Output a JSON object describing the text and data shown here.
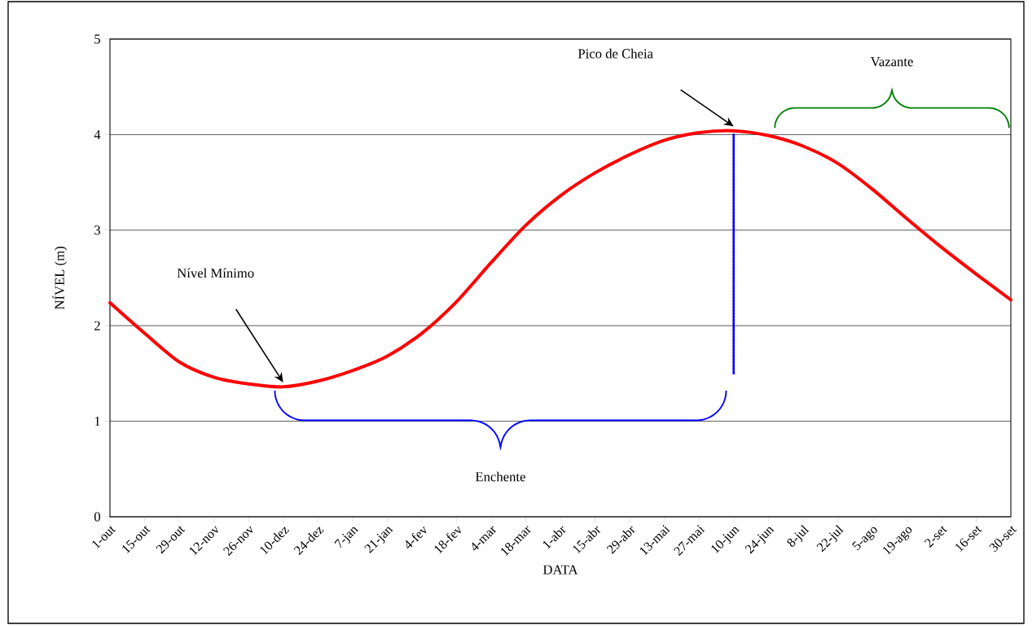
{
  "chart_data": {
    "type": "line",
    "xlabel": "DATA",
    "ylabel": "NÍVEL (m)",
    "categories": [
      "1-out",
      "15-out",
      "29-out",
      "12-nov",
      "26-nov",
      "10-dez",
      "24-dez",
      "7-jan",
      "21-jan",
      "4-fev",
      "18-fev",
      "4-mar",
      "18-mar",
      "1-abr",
      "15-abr",
      "29-abr",
      "13-mai",
      "27-mai",
      "10-jun",
      "24-jun",
      "8-jul",
      "22-jul",
      "5-ago",
      "19-ago",
      "2-set",
      "16-set",
      "30-set"
    ],
    "series": [
      {
        "color": "#ff0000",
        "line_style": "solid",
        "values": [
          2.24,
          1.92,
          1.62,
          1.46,
          1.39,
          1.36,
          1.42,
          1.53,
          1.68,
          1.92,
          2.25,
          2.66,
          3.05,
          3.36,
          3.6,
          3.79,
          3.94,
          4.02,
          4.04,
          3.99,
          3.88,
          3.7,
          3.43,
          3.12,
          2.82,
          2.54,
          2.27
        ]
      },
      {
        "color": "#0000ff",
        "line_style": "dotted",
        "x": [
          "10-jun",
          "10-jun"
        ],
        "values": [
          1.5,
          4.0
        ]
      }
    ],
    "ylim": [
      0,
      5
    ],
    "yticks": [
      {
        "value": 0,
        "label": "0"
      },
      {
        "value": 1,
        "label": "1"
      },
      {
        "value": 2,
        "label": "2"
      },
      {
        "value": 3,
        "label": "3"
      },
      {
        "value": 4,
        "label": "4"
      },
      {
        "value": 5,
        "label": "5"
      }
    ],
    "grid": "y",
    "marker": "none",
    "annotations": [
      "Nível Mínimo",
      "Pico de Cheia",
      "Enchente",
      "Vazante"
    ]
  }
}
